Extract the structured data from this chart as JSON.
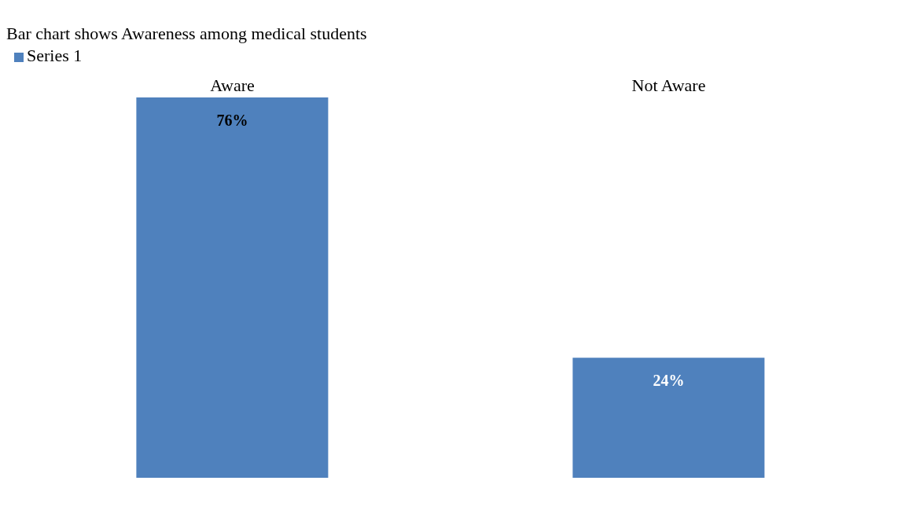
{
  "chart_data": {
    "type": "bar",
    "title": "Bar chart shows Awareness among medical students",
    "categories": [
      "Aware",
      "Not Aware"
    ],
    "series": [
      {
        "name": "Series 1",
        "color": "#4f81bd",
        "values": [
          76,
          24
        ],
        "value_labels": [
          "76%",
          "24%"
        ]
      }
    ],
    "legend": "top left"
  }
}
